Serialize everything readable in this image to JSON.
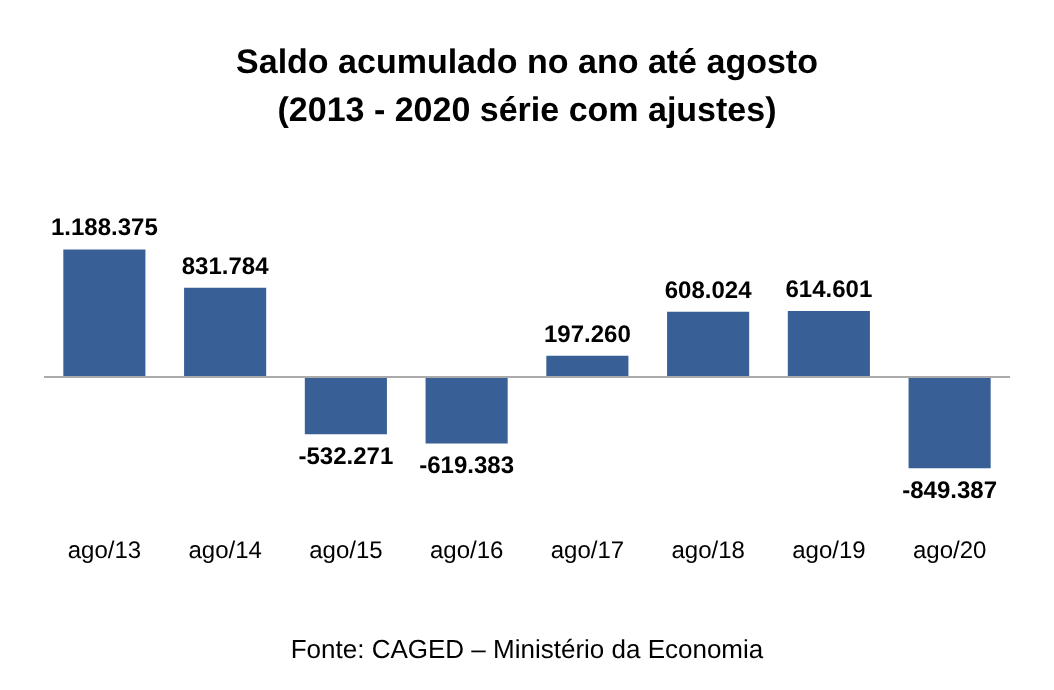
{
  "chart_data": {
    "type": "bar",
    "title": "Saldo acumulado no ano até agosto\n(2013 - 2020 série com ajustes)",
    "categories": [
      "ago/13",
      "ago/14",
      "ago/15",
      "ago/16",
      "ago/17",
      "ago/18",
      "ago/19",
      "ago/20"
    ],
    "values": [
      1188375,
      831784,
      -532271,
      -619383,
      197260,
      608024,
      614601,
      -849387
    ],
    "value_labels": [
      "1.188.375",
      "831.784",
      "-532.271",
      "-619.383",
      "197.260",
      "608.024",
      "614.601",
      "-849.387"
    ],
    "color": "#386096",
    "tick_labels": "x",
    "annotations": [
      "Fonte: CAGED – Ministério da Economia"
    ]
  }
}
